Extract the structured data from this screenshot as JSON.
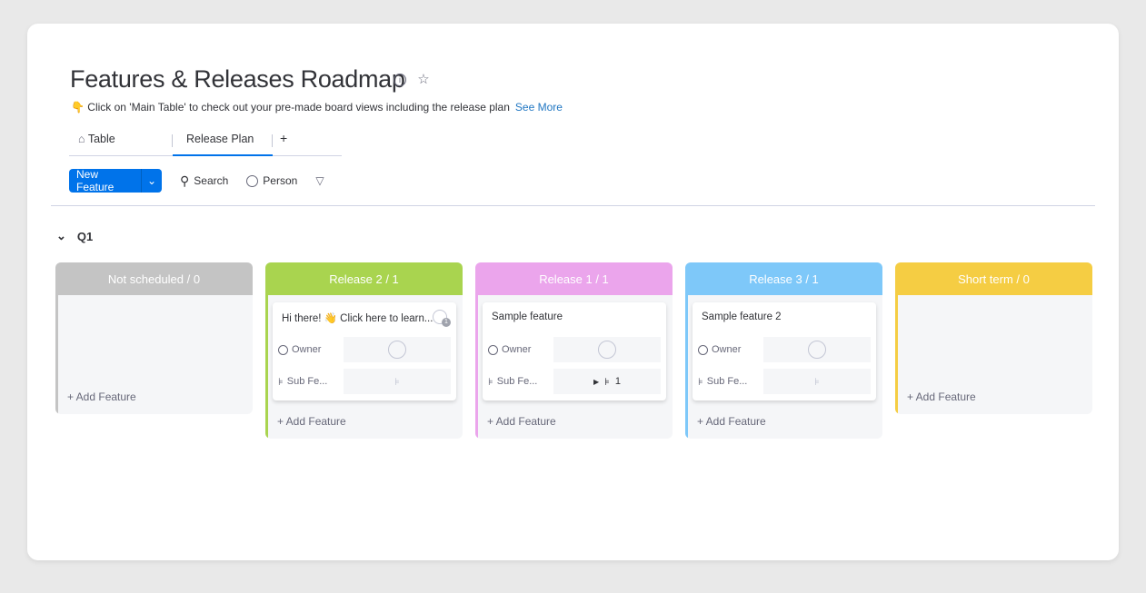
{
  "board": {
    "title": "Features & Releases Roadmap",
    "subtitle": "👇 Click on 'Main Table' to check out your pre-made board views including the release plan",
    "see_more": "See More"
  },
  "tabs": [
    {
      "label": "Table",
      "icon": "home-icon"
    },
    {
      "label": "Release Plan",
      "active": true
    },
    {
      "label": "+"
    }
  ],
  "toolbar": {
    "new_label": "New Feature",
    "search": "Search",
    "person": "Person"
  },
  "group": {
    "label": "Q1"
  },
  "add_label": "+ Add Feature",
  "columns": [
    {
      "title": "Not scheduled / 0",
      "color": "#c4c4c4"
    },
    {
      "title": "Release 2 / 1",
      "color": "#a9d44f",
      "card": {
        "title": "Hi there! 👋 Click here to learn...",
        "owner": "Owner",
        "sub": "Sub Fe...",
        "updates": "1"
      }
    },
    {
      "title": "Release 1 / 1",
      "color": "#eba5ec",
      "card": {
        "title": "Sample feature",
        "owner": "Owner",
        "sub": "Sub Fe...",
        "subcount": "1"
      }
    },
    {
      "title": "Release 3 / 1",
      "color": "#7ec8f9",
      "card": {
        "title": "Sample feature 2",
        "owner": "Owner",
        "sub": "Sub Fe..."
      }
    },
    {
      "title": "Short term / 0",
      "color": "#f5cd43"
    }
  ]
}
